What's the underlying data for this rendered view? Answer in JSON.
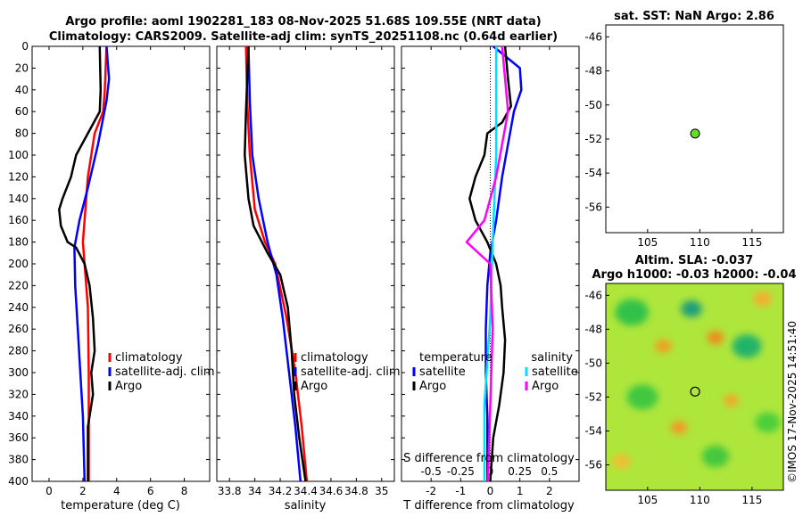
{
  "header": {
    "title_line1": "Argo profile: aoml 1902281_183 08-Nov-2025 51.68S 109.55E (NRT data)",
    "title_line2": "Climatology: CARS2009. Satellite-adj clim: synTS_20251108.nc (0.64d earlier)"
  },
  "stamp": "©IMOS 17-Nov-2025 14:51:40",
  "colors": {
    "climatology": "#ff0000",
    "satellite": "#0000ff",
    "argo": "#000000",
    "sal_sat": "#00e0ff",
    "sal_argo": "#ff00ff"
  },
  "chart_data": [
    {
      "type": "line",
      "id": "temperature-profile",
      "xlabel": "temperature (deg C)",
      "ylabel": "",
      "xlim": [
        -1,
        9.5
      ],
      "ylim": [
        400,
        0
      ],
      "xticks": [
        0,
        2,
        4,
        6,
        8
      ],
      "yticks": [
        0,
        20,
        40,
        60,
        80,
        100,
        120,
        140,
        160,
        180,
        200,
        220,
        240,
        260,
        280,
        300,
        320,
        340,
        360,
        380,
        400
      ],
      "legend": [
        "climatology",
        "satellite-adj. clim",
        "Argo"
      ],
      "series": [
        {
          "name": "climatology",
          "color": "#ff0000",
          "points": [
            [
              3.4,
              0
            ],
            [
              3.35,
              20
            ],
            [
              3.3,
              40
            ],
            [
              3.2,
              60
            ],
            [
              2.7,
              80
            ],
            [
              2.3,
              120
            ],
            [
              2.0,
              180
            ],
            [
              2.1,
              200
            ],
            [
              2.3,
              240
            ],
            [
              2.35,
              300
            ],
            [
              2.35,
              340
            ],
            [
              2.35,
              400
            ]
          ]
        },
        {
          "name": "satellite-adj. clim",
          "color": "#0000ff",
          "points": [
            [
              3.4,
              0
            ],
            [
              3.55,
              30
            ],
            [
              3.4,
              50
            ],
            [
              2.9,
              90
            ],
            [
              2.3,
              130
            ],
            [
              1.8,
              160
            ],
            [
              1.5,
              185
            ],
            [
              1.55,
              220
            ],
            [
              1.7,
              260
            ],
            [
              1.85,
              300
            ],
            [
              2.0,
              340
            ],
            [
              2.1,
              400
            ]
          ]
        },
        {
          "name": "Argo",
          "color": "#000000",
          "points": [
            [
              3.0,
              0
            ],
            [
              3.05,
              40
            ],
            [
              3.0,
              60
            ],
            [
              2.3,
              80
            ],
            [
              1.6,
              100
            ],
            [
              1.3,
              120
            ],
            [
              0.8,
              140
            ],
            [
              0.6,
              150
            ],
            [
              0.7,
              165
            ],
            [
              1.1,
              180
            ],
            [
              1.6,
              185
            ],
            [
              2.1,
              200
            ],
            [
              2.4,
              220
            ],
            [
              2.6,
              250
            ],
            [
              2.7,
              280
            ],
            [
              2.5,
              300
            ],
            [
              2.6,
              320
            ],
            [
              2.3,
              350
            ],
            [
              2.3,
              400
            ]
          ]
        }
      ]
    },
    {
      "type": "line",
      "id": "salinity-profile",
      "xlabel": "salinity",
      "xlim": [
        33.7,
        35.1
      ],
      "ylim": [
        400,
        0
      ],
      "xticks": [
        33.8,
        34,
        34.2,
        34.4,
        34.6,
        34.8,
        35
      ],
      "legend": [
        "climatology",
        "satellite-adj. clim",
        "Argo"
      ],
      "series": [
        {
          "name": "climatology",
          "color": "#ff0000",
          "points": [
            [
              33.93,
              0
            ],
            [
              33.94,
              50
            ],
            [
              33.96,
              100
            ],
            [
              34.0,
              150
            ],
            [
              34.08,
              180
            ],
            [
              34.16,
              200
            ],
            [
              34.25,
              250
            ],
            [
              34.32,
              300
            ],
            [
              34.37,
              350
            ],
            [
              34.41,
              400
            ]
          ]
        },
        {
          "name": "satellite-adj. clim",
          "color": "#0000ff",
          "points": [
            [
              33.95,
              0
            ],
            [
              33.96,
              50
            ],
            [
              33.98,
              100
            ],
            [
              34.03,
              140
            ],
            [
              34.1,
              180
            ],
            [
              34.17,
              210
            ],
            [
              34.22,
              250
            ],
            [
              34.27,
              300
            ],
            [
              34.32,
              350
            ],
            [
              34.36,
              400
            ]
          ]
        },
        {
          "name": "Argo",
          "color": "#000000",
          "points": [
            [
              33.95,
              0
            ],
            [
              33.93,
              60
            ],
            [
              33.92,
              100
            ],
            [
              33.95,
              140
            ],
            [
              33.99,
              165
            ],
            [
              34.1,
              190
            ],
            [
              34.2,
              210
            ],
            [
              34.26,
              240
            ],
            [
              34.29,
              280
            ],
            [
              34.31,
              320
            ],
            [
              34.35,
              360
            ],
            [
              34.4,
              400
            ]
          ]
        }
      ]
    },
    {
      "type": "line",
      "id": "difference-profile",
      "xlabel": "T difference from climatology",
      "xlabel_top": "S difference from climatology",
      "xlim": [
        -3,
        3
      ],
      "ylim": [
        400,
        0
      ],
      "xticks": [
        -2,
        -1,
        0,
        1,
        2
      ],
      "xticks_top": [
        -0.5,
        -0.25,
        0,
        0.25,
        0.5
      ],
      "legend_left": {
        "header": "temperature",
        "items": [
          "satellite",
          "Argo"
        ]
      },
      "legend_right": {
        "header": "salinity",
        "items": [
          "satellite",
          "Argo"
        ]
      },
      "series": [
        {
          "name": "T satellite",
          "color": "#0000ff",
          "points": [
            [
              0.1,
              0
            ],
            [
              1.0,
              20
            ],
            [
              1.05,
              40
            ],
            [
              0.8,
              60
            ],
            [
              0.6,
              90
            ],
            [
              0.4,
              120
            ],
            [
              0.2,
              160
            ],
            [
              0.0,
              190
            ],
            [
              -0.1,
              220
            ],
            [
              -0.15,
              260
            ],
            [
              -0.15,
              300
            ],
            [
              -0.1,
              340
            ],
            [
              -0.1,
              400
            ]
          ]
        },
        {
          "name": "T Argo",
          "color": "#000000",
          "points": [
            [
              0.5,
              0
            ],
            [
              0.6,
              30
            ],
            [
              0.7,
              55
            ],
            [
              0.4,
              70
            ],
            [
              -0.1,
              80
            ],
            [
              -0.2,
              100
            ],
            [
              -0.5,
              120
            ],
            [
              -0.7,
              140
            ],
            [
              -0.5,
              160
            ],
            [
              -0.1,
              180
            ],
            [
              0.2,
              200
            ],
            [
              0.35,
              220
            ],
            [
              0.4,
              240
            ],
            [
              0.5,
              270
            ],
            [
              0.45,
              300
            ],
            [
              0.3,
              330
            ],
            [
              0.1,
              360
            ],
            [
              0.0,
              400
            ]
          ]
        },
        {
          "name": "S satellite",
          "color": "#00e0ff",
          "points": [
            [
              0.05,
              0
            ],
            [
              0.05,
              100
            ],
            [
              0.02,
              180
            ],
            [
              0.0,
              250
            ],
            [
              -0.05,
              330
            ],
            [
              -0.05,
              400
            ]
          ]
        },
        {
          "name": "S Argo",
          "color": "#ff00ff",
          "points": [
            [
              0.1,
              0
            ],
            [
              0.15,
              60
            ],
            [
              0.05,
              120
            ],
            [
              -0.05,
              160
            ],
            [
              -0.2,
              180
            ],
            [
              0.0,
              200
            ],
            [
              0.02,
              260
            ],
            [
              0.0,
              330
            ],
            [
              -0.02,
              400
            ]
          ]
        }
      ]
    },
    {
      "type": "scatter",
      "id": "sst-map",
      "title": "sat. SST: NaN Argo: 2.86",
      "xlim": [
        101,
        118
      ],
      "ylim": [
        -57.5,
        -45.3
      ],
      "xticks": [
        105,
        110,
        115
      ],
      "yticks": [
        -46,
        -48,
        -50,
        -52,
        -54,
        -56
      ],
      "points": [
        {
          "x": 109.55,
          "y": -51.68,
          "color": "#66dd22"
        }
      ]
    },
    {
      "type": "heatmap",
      "id": "sla-map",
      "title_line1": "Altim. SLA: -0.037",
      "title_line2": "Argo h1000: -0.03 h2000: -0.04",
      "xlim": [
        101,
        118
      ],
      "ylim": [
        -57.5,
        -45.3
      ],
      "xticks": [
        105,
        110,
        115
      ],
      "yticks": [
        -46,
        -48,
        -50,
        -52,
        -54,
        -56
      ],
      "point": {
        "x": 109.55,
        "y": -51.68
      },
      "blobs": [
        {
          "x": 109.2,
          "y": -46.8,
          "r": 1.0,
          "color": "#1f9e7a"
        },
        {
          "x": 103.5,
          "y": -47.0,
          "r": 1.6,
          "color": "#33c24a"
        },
        {
          "x": 114.5,
          "y": -49.0,
          "r": 1.4,
          "color": "#23b36a"
        },
        {
          "x": 104.5,
          "y": -52.0,
          "r": 1.5,
          "color": "#40c840"
        },
        {
          "x": 116.5,
          "y": -53.5,
          "r": 1.2,
          "color": "#4ccf3a"
        },
        {
          "x": 111.5,
          "y": -55.5,
          "r": 1.3,
          "color": "#44c83e"
        },
        {
          "x": 106.5,
          "y": -49.0,
          "r": 0.8,
          "color": "#f0a020"
        },
        {
          "x": 111.5,
          "y": -48.5,
          "r": 0.8,
          "color": "#f08a1a"
        },
        {
          "x": 108.0,
          "y": -53.8,
          "r": 0.8,
          "color": "#f29a28"
        },
        {
          "x": 113.0,
          "y": -52.2,
          "r": 0.7,
          "color": "#f4a62a"
        },
        {
          "x": 102.5,
          "y": -55.8,
          "r": 0.9,
          "color": "#f0c030"
        },
        {
          "x": 116.0,
          "y": -46.2,
          "r": 0.9,
          "color": "#f2b030"
        }
      ]
    }
  ]
}
